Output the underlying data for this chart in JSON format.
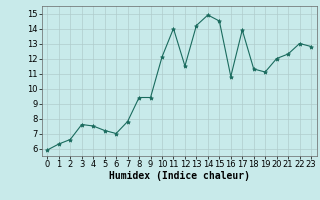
{
  "x": [
    0,
    1,
    2,
    3,
    4,
    5,
    6,
    7,
    8,
    9,
    10,
    11,
    12,
    13,
    14,
    15,
    16,
    17,
    18,
    19,
    20,
    21,
    22,
    23
  ],
  "y": [
    5.9,
    6.3,
    6.6,
    7.6,
    7.5,
    7.2,
    7.0,
    7.8,
    9.4,
    9.4,
    12.1,
    14.0,
    11.5,
    14.2,
    14.9,
    14.5,
    10.8,
    13.9,
    11.3,
    11.1,
    12.0,
    12.3,
    13.0,
    12.8
  ],
  "line_color": "#1a6b5e",
  "marker": "*",
  "marker_size": 3,
  "bg_color": "#c8eaea",
  "grid_color": "#b0cccc",
  "xlabel": "Humidex (Indice chaleur)",
  "xlim": [
    -0.5,
    23.5
  ],
  "ylim": [
    5.5,
    15.5
  ],
  "yticks": [
    6,
    7,
    8,
    9,
    10,
    11,
    12,
    13,
    14,
    15
  ],
  "xticks": [
    0,
    1,
    2,
    3,
    4,
    5,
    6,
    7,
    8,
    9,
    10,
    11,
    12,
    13,
    14,
    15,
    16,
    17,
    18,
    19,
    20,
    21,
    22,
    23
  ],
  "tick_font_size": 6,
  "label_font_size": 7
}
